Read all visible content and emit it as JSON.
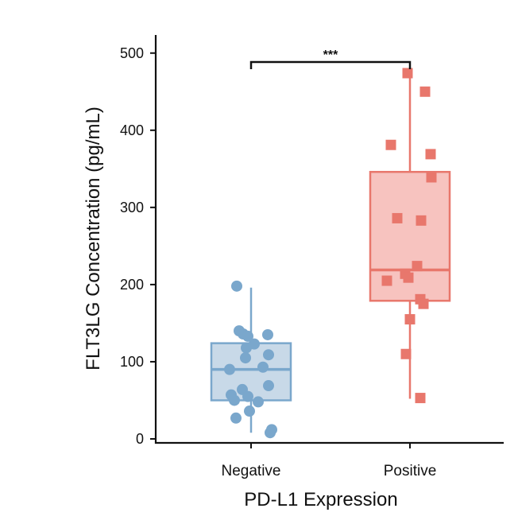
{
  "chart_data": {
    "type": "box",
    "xlabel": "PD-L1 Expression",
    "ylabel": "FLT3LG Concentration (pg/mL)",
    "ylim": [
      0,
      500
    ],
    "yticks": [
      0,
      100,
      200,
      300,
      400,
      500
    ],
    "y_tick_labels": [
      "0",
      "100",
      "200",
      "300",
      "400",
      "500"
    ],
    "categories": [
      "Negative",
      "Positive"
    ],
    "grid": false,
    "legend": "none",
    "significance": {
      "between": [
        "Negative",
        "Positive"
      ],
      "label": "***"
    },
    "series": [
      {
        "category": "Negative",
        "color": "#7aa7cc",
        "box_fill": "#c2d5e6",
        "marker": "circle",
        "box": {
          "whisker_low": 8,
          "q1": 50,
          "median": 90,
          "q3": 124,
          "whisker_high": 196
        },
        "points": [
          {
            "x": -0.18,
            "y": 198
          },
          {
            "x": -0.15,
            "y": 140
          },
          {
            "x": -0.1,
            "y": 136
          },
          {
            "x": -0.04,
            "y": 133
          },
          {
            "x": 0.21,
            "y": 135
          },
          {
            "x": 0.04,
            "y": 123
          },
          {
            "x": -0.06,
            "y": 118
          },
          {
            "x": -0.07,
            "y": 105
          },
          {
            "x": 0.22,
            "y": 109
          },
          {
            "x": -0.27,
            "y": 90
          },
          {
            "x": 0.15,
            "y": 93
          },
          {
            "x": 0.22,
            "y": 69
          },
          {
            "x": -0.11,
            "y": 64
          },
          {
            "x": -0.25,
            "y": 57
          },
          {
            "x": -0.21,
            "y": 50
          },
          {
            "x": -0.04,
            "y": 55
          },
          {
            "x": 0.09,
            "y": 48
          },
          {
            "x": -0.02,
            "y": 36
          },
          {
            "x": -0.19,
            "y": 27
          },
          {
            "x": 0.26,
            "y": 12
          },
          {
            "x": 0.24,
            "y": 8
          }
        ]
      },
      {
        "category": "Positive",
        "color": "#e8776c",
        "box_fill": "#f6bdb8",
        "marker": "square",
        "box": {
          "whisker_low": 52,
          "q1": 179,
          "median": 219,
          "q3": 346,
          "whisker_high": 468
        },
        "points": [
          {
            "x": -0.03,
            "y": 474
          },
          {
            "x": 0.19,
            "y": 450
          },
          {
            "x": -0.24,
            "y": 381
          },
          {
            "x": 0.26,
            "y": 369
          },
          {
            "x": 0.27,
            "y": 339
          },
          {
            "x": -0.16,
            "y": 286
          },
          {
            "x": 0.14,
            "y": 283
          },
          {
            "x": 0.09,
            "y": 224
          },
          {
            "x": -0.06,
            "y": 214
          },
          {
            "x": -0.02,
            "y": 209
          },
          {
            "x": -0.29,
            "y": 205
          },
          {
            "x": 0.13,
            "y": 181
          },
          {
            "x": 0.17,
            "y": 175
          },
          {
            "x": 0.0,
            "y": 155
          },
          {
            "x": -0.05,
            "y": 110
          },
          {
            "x": 0.13,
            "y": 53
          }
        ]
      }
    ]
  }
}
